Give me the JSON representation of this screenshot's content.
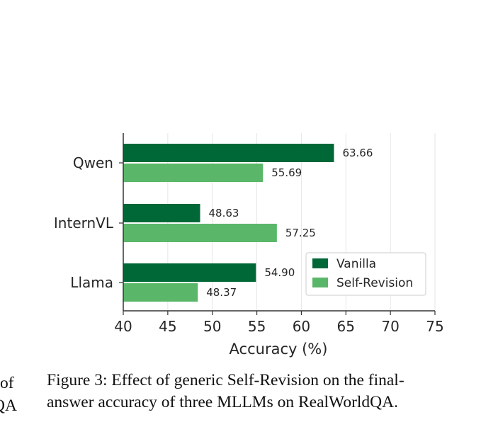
{
  "chart_data": {
    "type": "bar",
    "orientation": "horizontal",
    "categories": [
      "Qwen",
      "InternVL",
      "Llama"
    ],
    "series": [
      {
        "name": "Vanilla",
        "values": [
          63.66,
          48.63,
          54.9
        ],
        "labels": [
          "63.66",
          "48.63",
          "54.90"
        ],
        "color": "#006837"
      },
      {
        "name": "Self-Revision",
        "values": [
          55.69,
          57.25,
          48.37
        ],
        "labels": [
          "55.69",
          "57.25",
          "48.37"
        ],
        "color": "#5ab769"
      }
    ],
    "xlabel": "Accuracy (%)",
    "ylabel": "",
    "xlim": [
      40,
      75
    ],
    "xticks": [
      "40",
      "45",
      "50",
      "55",
      "60",
      "65",
      "70",
      "75"
    ],
    "grid": "vertical",
    "legend_position": "lower-right"
  },
  "caption": {
    "line1": "Figure 3: Effect of generic Self-Revision on the final-",
    "line2": "answer accuracy of three MLLMs on RealWorldQA."
  },
  "edge_text": {
    "line1": "of",
    "line2": "QA"
  }
}
